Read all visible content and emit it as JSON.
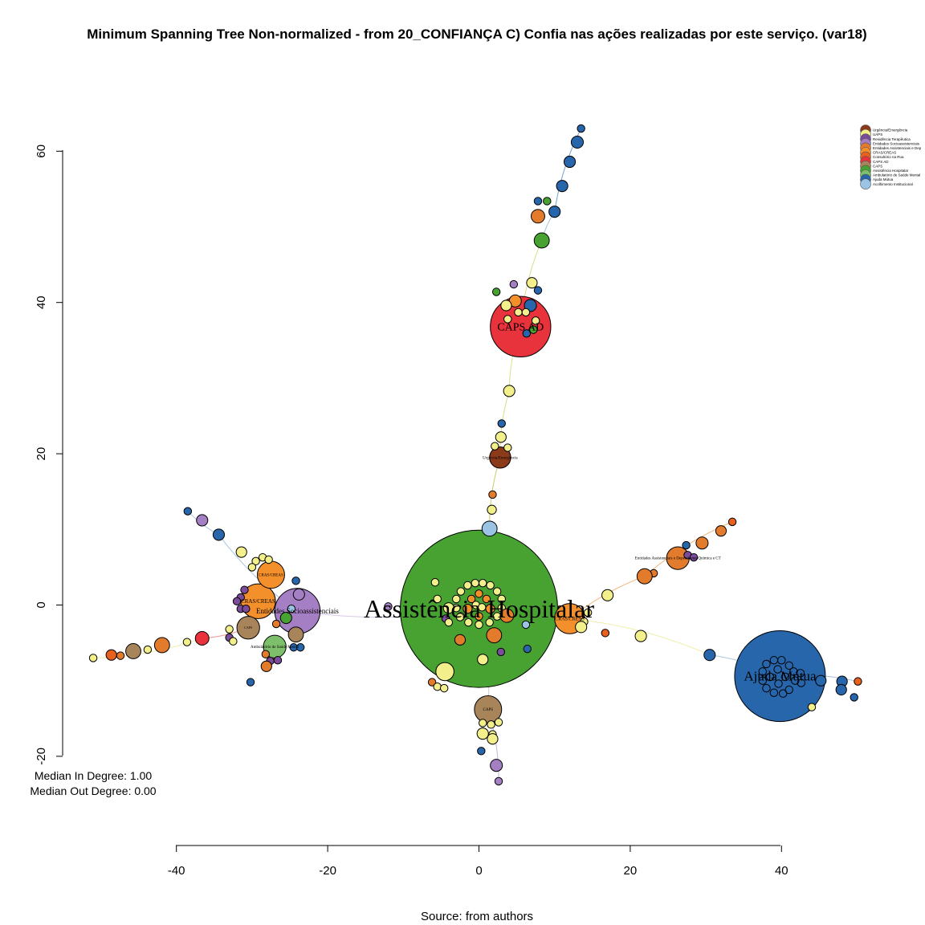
{
  "title": "Minimum Spanning Tree Non-normalized - from 20_CONFIANÇA C) Confia nas ações realizadas por este serviço. (var18)",
  "caption": "Source: from authors",
  "stats": {
    "median_in": "Median In Degree: 1.00",
    "median_out": "Median Out Degree: 0.00"
  },
  "legend": {
    "items": [
      {
        "label": "Urgência/Emergência",
        "color": "#8b3a1a"
      },
      {
        "label": "UAPS",
        "color": "#f3ef8a"
      },
      {
        "label": "Residência Terapêutica",
        "color": "#7a4c9a"
      },
      {
        "label": "Entidades Socioassistenciais",
        "color": "#a57fc4"
      },
      {
        "label": "Entidades Assistenciais e Dep",
        "color": "#e37b2c"
      },
      {
        "label": "CRAS/CREAS",
        "color": "#f4902c"
      },
      {
        "label": "Consultório na Rua",
        "color": "#e8611f"
      },
      {
        "label": "CAPS AD",
        "color": "#e8323c"
      },
      {
        "label": "CAPS",
        "color": "#a8845a"
      },
      {
        "label": "Assistência Hospitalar",
        "color": "#47a232"
      },
      {
        "label": "Ambulatório de Saúde Mental",
        "color": "#7dbf6a"
      },
      {
        "label": "Ajuda Mútua",
        "color": "#2766ab"
      },
      {
        "label": "Acolhimento Institucional",
        "color": "#9ac3e4"
      }
    ]
  },
  "chart_data": {
    "type": "network",
    "title": "Minimum Spanning Tree Non-normalized - from 20_CONFIANÇA C) Confia nas ações realizadas por este serviço. (var18)",
    "xlim": [
      -40,
      40
    ],
    "ylim": [
      -20,
      60
    ],
    "x_ticks": [
      -40,
      -20,
      0,
      20,
      40
    ],
    "y_ticks": [
      -20,
      0,
      20,
      40,
      60
    ],
    "x_tick_labels": [
      "-40",
      "-20",
      "0",
      "20",
      "40"
    ],
    "y_tick_labels": [
      "-20",
      "0",
      "20",
      "40",
      "60"
    ],
    "hubs": [
      {
        "label": "Assistência Hospitalar",
        "x": 0,
        "y": -0.5,
        "r": 10.4,
        "color": "#47a232",
        "font": 32
      },
      {
        "label": "Ajuda Mútua",
        "x": 39.8,
        "y": -9.4,
        "r": 6.0,
        "color": "#2766ab",
        "font": 17
      },
      {
        "label": "CAPS AD",
        "x": 5.5,
        "y": 36.8,
        "r": 4.0,
        "color": "#e8323c",
        "font": 14
      },
      {
        "label": "Entidades Socioassistenciais",
        "x": -24,
        "y": -0.8,
        "r": 3.0,
        "color": "#a57fc4",
        "font": 9
      },
      {
        "label": "CRAS/CREAS",
        "x": -29.2,
        "y": 0.5,
        "r": 2.3,
        "color": "#f4902c",
        "font": 7
      },
      {
        "label": "CRAS/CREAS",
        "x": 12,
        "y": -1.8,
        "r": 2.0,
        "color": "#f4902c",
        "font": 6
      },
      {
        "label": "CRAS/CREAS",
        "x": -27.5,
        "y": 4.0,
        "r": 1.8,
        "color": "#f4902c",
        "font": 5
      },
      {
        "label": "Urgência/Emergência",
        "x": 2.8,
        "y": 19.5,
        "r": 1.4,
        "color": "#8b3a1a",
        "font": 5
      },
      {
        "label": "CAPS",
        "x": 1.2,
        "y": -13.8,
        "r": 1.8,
        "color": "#a8845a",
        "font": 5
      },
      {
        "label": "CAPS",
        "x": -30.5,
        "y": -3,
        "r": 1.5,
        "color": "#a8845a",
        "font": 4
      },
      {
        "label": "Ambulatório de Saúde Mental",
        "x": -27,
        "y": -5.5,
        "r": 1.5,
        "color": "#7dbf6a",
        "font": 5
      },
      {
        "label": "Entidades Assistenciais e Dependentes Química e CT",
        "x": 26.3,
        "y": 6.2,
        "r": 1.5,
        "color": "#e37b2c",
        "font": 5
      }
    ]
  }
}
